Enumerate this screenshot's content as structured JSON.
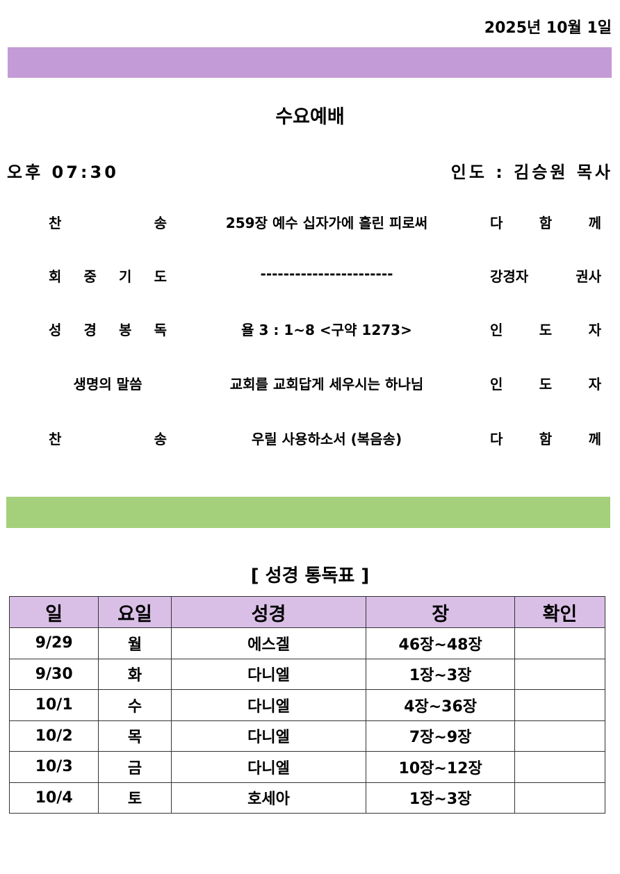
{
  "header": {
    "date": "2025년 10월 1일",
    "title": "수요예배",
    "time": "오후 07:30",
    "leader": "인도 : 김승원 목사"
  },
  "colors": {
    "purple_bar": "#c39bd6",
    "green_bar": "#a5d07b",
    "table_header_bg": "#d9bfe6"
  },
  "order": [
    {
      "label": "찬 송",
      "content": "259장 예수 십자가에 흘린 피로써",
      "who": "다 함 께"
    },
    {
      "label": "회 중 기 도",
      "content": "-----------------------",
      "who": "강경자 권사"
    },
    {
      "label": "성 경 봉 독",
      "content": "욜 3 : 1~8 <구약 1273>",
      "who": "인 도 자"
    },
    {
      "label": "생명의 말씀",
      "content": "교회를 교회답게 세우시는 하나님",
      "who": "인 도 자"
    },
    {
      "label": "찬 송",
      "content": "우릴 사용하소서 (복음송)",
      "who": "다 함 께"
    }
  ],
  "reading": {
    "title": "[ 성경 통독표 ]",
    "headers": [
      "일",
      "요일",
      "성경",
      "장",
      "확인"
    ],
    "rows": [
      [
        "9/29",
        "월",
        "에스겔",
        "46장~48장",
        ""
      ],
      [
        "9/30",
        "화",
        "다니엘",
        "1장~3장",
        ""
      ],
      [
        "10/1",
        "수",
        "다니엘",
        "4장~36장",
        ""
      ],
      [
        "10/2",
        "목",
        "다니엘",
        "7장~9장",
        ""
      ],
      [
        "10/3",
        "금",
        "다니엘",
        "10장~12장",
        ""
      ],
      [
        "10/4",
        "토",
        "호세아",
        "1장~3장",
        ""
      ]
    ]
  }
}
